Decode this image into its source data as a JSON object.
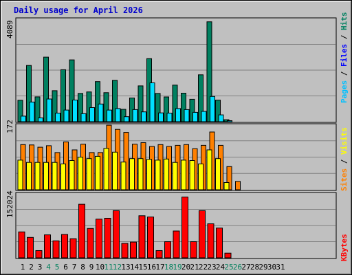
{
  "window": {
    "title": "Daily usage for April 2026"
  },
  "colors": {
    "title": "#0000cc",
    "background": "#c0c0c0",
    "hits": "#008060",
    "files": "#00c0ff",
    "pages": "#00e0ff",
    "visits": "#ffff00",
    "sites": "#ff8000",
    "kbytes": "#ff0000",
    "weekend_label": "#00805c",
    "normal_label": "#000000"
  },
  "legend": {
    "top": [
      {
        "text": "Pages",
        "color": "#00c0ff"
      },
      {
        "text": " / ",
        "color": "#000000"
      },
      {
        "text": "Files",
        "color": "#0000ff"
      },
      {
        "text": " / ",
        "color": "#000000"
      },
      {
        "text": "Hits",
        "color": "#008060"
      }
    ],
    "middle": [
      {
        "text": "Sites",
        "color": "#ff8000"
      },
      {
        "text": " / ",
        "color": "#000000"
      },
      {
        "text": "Visits",
        "color": "#ffff00"
      }
    ],
    "bottom": [
      {
        "text": "KBytes",
        "color": "#ff0000"
      }
    ]
  },
  "chart_data": [
    {
      "type": "bar",
      "title": "Daily usage for April 2026",
      "panel": "hits-files-pages",
      "ymax_label": "4089",
      "ylim": [
        0,
        4089
      ],
      "grid": true,
      "categories": [
        "1",
        "2",
        "3",
        "4",
        "5",
        "6",
        "7",
        "8",
        "9",
        "10",
        "11",
        "12",
        "13",
        "14",
        "15",
        "16",
        "17",
        "18",
        "19",
        "20",
        "21",
        "22",
        "23",
        "24",
        "25",
        "26",
        "27",
        "28",
        "29",
        "30",
        "31"
      ],
      "series": [
        {
          "name": "Hits",
          "values": [
            850,
            2230,
            985,
            2560,
            1230,
            2060,
            2450,
            1120,
            1180,
            1590,
            1150,
            1640,
            490,
            940,
            1420,
            2500,
            1120,
            980,
            1450,
            1130,
            890,
            1860,
            3960,
            855,
            80,
            0,
            0,
            0,
            0,
            0,
            0
          ]
        },
        {
          "name": "Files",
          "values": [
            0,
            0,
            0,
            0,
            0,
            0,
            0,
            0,
            0,
            0,
            0,
            0,
            0,
            0,
            0,
            0,
            0,
            0,
            0,
            0,
            0,
            0,
            0,
            0,
            0,
            0,
            0,
            0,
            0,
            0,
            0
          ]
        },
        {
          "name": "Pages",
          "values": [
            220,
            780,
            150,
            900,
            340,
            460,
            860,
            320,
            560,
            700,
            460,
            520,
            200,
            480,
            390,
            1540,
            350,
            340,
            520,
            480,
            370,
            410,
            1000,
            270,
            40,
            0,
            0,
            0,
            0,
            0,
            0
          ]
        }
      ]
    },
    {
      "type": "bar",
      "panel": "sites-visits",
      "ymax_label": "172",
      "ylim": [
        0,
        172
      ],
      "grid": true,
      "categories": [
        "1",
        "2",
        "3",
        "4",
        "5",
        "6",
        "7",
        "8",
        "9",
        "10",
        "11",
        "12",
        "13",
        "14",
        "15",
        "16",
        "17",
        "18",
        "19",
        "20",
        "21",
        "22",
        "23",
        "24",
        "25",
        "26",
        "27",
        "28",
        "29",
        "30",
        "31"
      ],
      "series": [
        {
          "name": "Visits",
          "values": [
            78,
            72,
            72,
            72,
            72,
            68,
            77,
            86,
            82,
            88,
            109,
            99,
            73,
            82,
            82,
            80,
            78,
            81,
            72,
            78,
            77,
            68,
            105,
            82,
            19,
            0,
            0,
            0,
            0,
            0,
            0
          ]
        },
        {
          "name": "Sites",
          "values": [
            119,
            118,
            112,
            116,
            98,
            126,
            105,
            120,
            98,
            98,
            170,
            159,
            151,
            120,
            124,
            114,
            119,
            114,
            117,
            119,
            108,
            117,
            152,
            117,
            61,
            22,
            0,
            0,
            0,
            0,
            0
          ]
        }
      ]
    },
    {
      "type": "bar",
      "panel": "kbytes",
      "ymax_label": "152024",
      "ylim": [
        0,
        152024
      ],
      "grid": true,
      "categories": [
        "1",
        "2",
        "3",
        "4",
        "5",
        "6",
        "7",
        "8",
        "9",
        "10",
        "11",
        "12",
        "13",
        "14",
        "15",
        "16",
        "17",
        "18",
        "19",
        "20",
        "21",
        "22",
        "23",
        "24",
        "25",
        "26",
        "27",
        "28",
        "29",
        "30",
        "31"
      ],
      "series": [
        {
          "name": "KBytes",
          "values": [
            61000,
            48000,
            17000,
            54000,
            40000,
            55000,
            45000,
            126000,
            69000,
            91000,
            93000,
            111000,
            34000,
            37000,
            99000,
            96000,
            17000,
            38000,
            63000,
            143000,
            38000,
            111000,
            80000,
            70000,
            11000,
            0,
            0,
            0,
            0,
            0,
            0
          ]
        }
      ]
    }
  ],
  "x_labels": [
    {
      "text": "1",
      "weekend": false
    },
    {
      "text": "2",
      "weekend": false
    },
    {
      "text": "3",
      "weekend": false
    },
    {
      "text": "4",
      "weekend": true
    },
    {
      "text": "5",
      "weekend": true
    },
    {
      "text": "6",
      "weekend": false
    },
    {
      "text": "7",
      "weekend": false
    },
    {
      "text": "8",
      "weekend": false
    },
    {
      "text": "9",
      "weekend": false
    },
    {
      "text": "10",
      "weekend": false
    },
    {
      "text": "11",
      "weekend": true
    },
    {
      "text": "12",
      "weekend": true
    },
    {
      "text": "13",
      "weekend": false
    },
    {
      "text": "14",
      "weekend": false
    },
    {
      "text": "15",
      "weekend": false
    },
    {
      "text": "16",
      "weekend": false
    },
    {
      "text": "17",
      "weekend": false
    },
    {
      "text": "18",
      "weekend": true
    },
    {
      "text": "19",
      "weekend": true
    },
    {
      "text": "20",
      "weekend": false
    },
    {
      "text": "21",
      "weekend": false
    },
    {
      "text": "22",
      "weekend": false
    },
    {
      "text": "23",
      "weekend": false
    },
    {
      "text": "24",
      "weekend": false
    },
    {
      "text": "25",
      "weekend": true
    },
    {
      "text": "26",
      "weekend": true
    },
    {
      "text": "27",
      "weekend": false
    },
    {
      "text": "28",
      "weekend": false
    },
    {
      "text": "29",
      "weekend": false
    },
    {
      "text": "30",
      "weekend": false
    },
    {
      "text": "31",
      "weekend": false
    }
  ]
}
